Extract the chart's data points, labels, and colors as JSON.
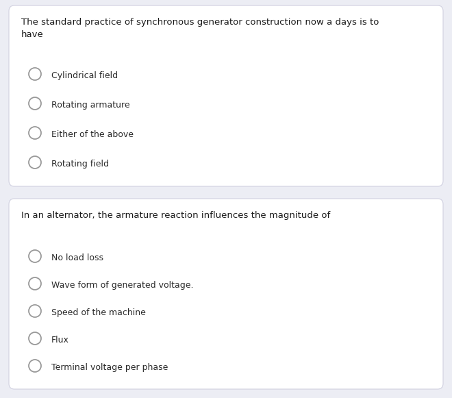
{
  "background_color": "#ecedf4",
  "card_color": "#ffffff",
  "card_border_color": "#d0d0e0",
  "text_color": "#1a1a1a",
  "option_text_color": "#2a2a2a",
  "circle_edge_color": "#999999",
  "question1": "The standard practice of synchronous generator construction now a days is to\nhave",
  "options1": [
    "Cylindrical field",
    "Rotating armature",
    "Either of the above",
    "Rotating field"
  ],
  "question2": "In an alternator, the armature reaction influences the magnitude of",
  "options2": [
    "No load loss",
    "Wave form of generated voltage.",
    "Speed of the machine",
    "Flux",
    "Terminal voltage per phase"
  ],
  "question_fontsize": 9.5,
  "option_fontsize": 9.0,
  "fig_width": 6.6,
  "fig_height": 5.81,
  "dpi": 100
}
